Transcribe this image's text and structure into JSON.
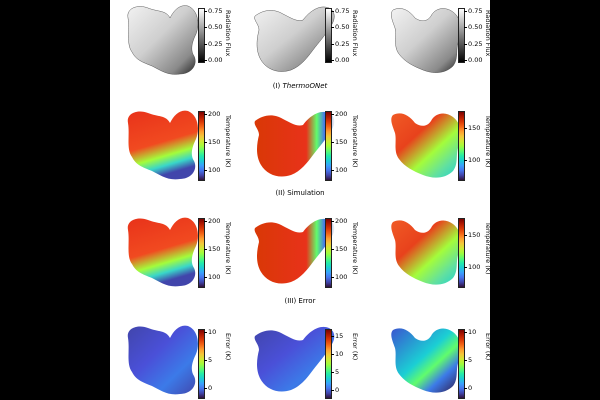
{
  "rows": [
    {
      "key": "flux",
      "panels": [
        {
          "palette": "gray",
          "label": "Radiation Flux",
          "ticks": [
            "0.75",
            "0.50",
            "0.25",
            "0.00"
          ],
          "variant": "a"
        },
        {
          "palette": "gray",
          "label": "Radiation Flux",
          "ticks": [
            "0.75",
            "0.50",
            "0.25",
            "0.00"
          ],
          "variant": "b"
        },
        {
          "palette": "gray",
          "label": "Radiation Flux",
          "ticks": [
            "0.75",
            "0.50",
            "0.25",
            "0.00"
          ],
          "variant": "c"
        }
      ]
    },
    {
      "key": "thermoonet",
      "title_prefix": "(I) ",
      "title_name": "ThermoONet",
      "panels": [
        {
          "palette": "rainbow",
          "label": "Temperature (K)",
          "ticks": [
            "200",
            "150",
            "100"
          ],
          "variant": "a"
        },
        {
          "palette": "rainbow",
          "label": "Temperature (K)",
          "ticks": [
            "200",
            "150",
            "100"
          ],
          "variant": "b"
        },
        {
          "palette": "rainbow",
          "label": "Temperature (K)",
          "ticks": [
            "150",
            "100"
          ],
          "variant": "c"
        }
      ]
    },
    {
      "key": "simulation",
      "title": "(II) Simulation",
      "panels": [
        {
          "palette": "rainbow",
          "label": "Temperature (K)",
          "ticks": [
            "200",
            "150",
            "100"
          ],
          "variant": "a"
        },
        {
          "palette": "rainbow",
          "label": "Temperature (K)",
          "ticks": [
            "200",
            "150",
            "100"
          ],
          "variant": "b"
        },
        {
          "palette": "rainbow",
          "label": "Temperature (K)",
          "ticks": [
            "150",
            "100"
          ],
          "variant": "c"
        }
      ]
    },
    {
      "key": "error",
      "title": "(III) Error",
      "panels": [
        {
          "palette": "rainbow",
          "label": "Error (K)",
          "ticks": [
            "10",
            "5",
            "0"
          ],
          "variant": "a"
        },
        {
          "palette": "rainbow",
          "label": "Error (K)",
          "ticks": [
            "15",
            "10",
            "5",
            "0"
          ],
          "variant": "b"
        },
        {
          "palette": "rainbow",
          "label": "Error (K)",
          "ticks": [
            "10",
            "5",
            "0"
          ],
          "variant": "c"
        }
      ]
    }
  ]
}
